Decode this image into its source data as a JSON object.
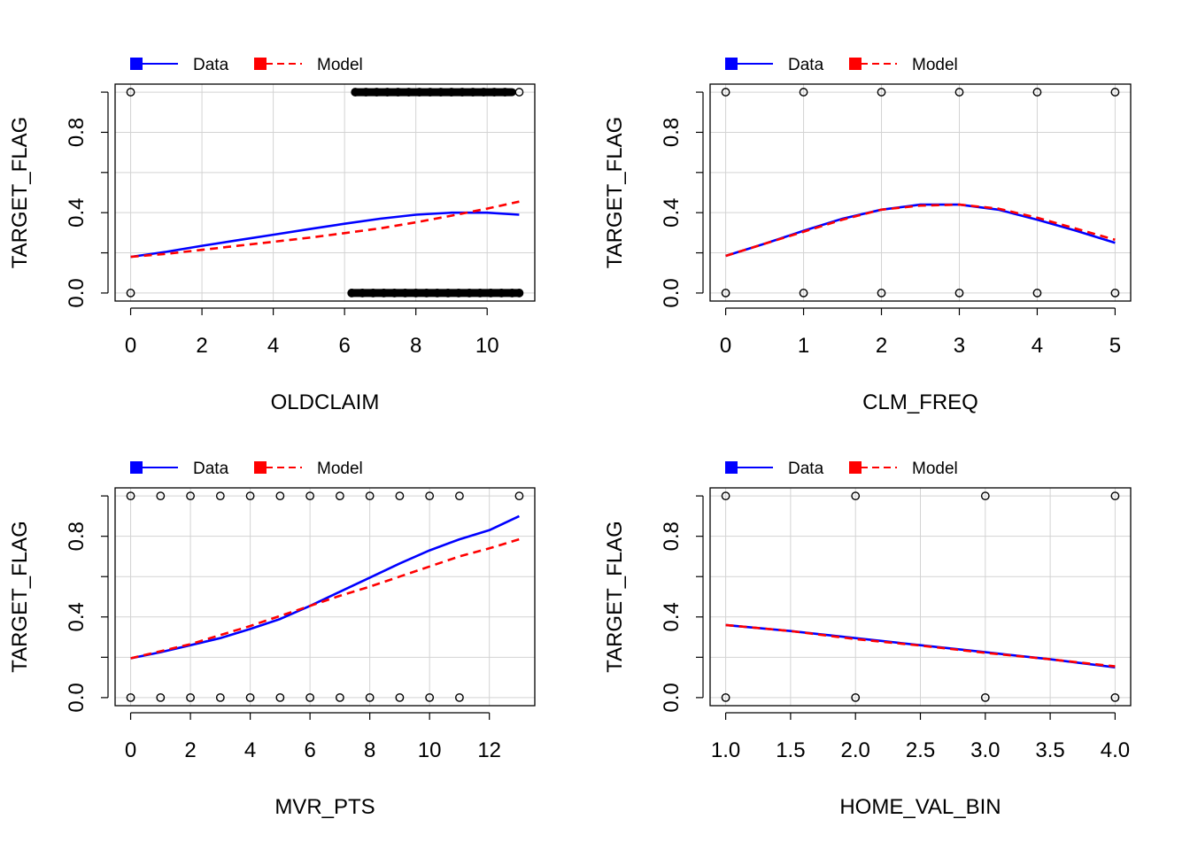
{
  "chart_data": [
    {
      "type": "line",
      "xlabel": "OLDCLAIM",
      "ylabel": "TARGET_FLAG",
      "xlim": [
        0,
        10.9
      ],
      "ylim": [
        0,
        1
      ],
      "xticks": [
        0,
        2,
        4,
        6,
        8,
        10
      ],
      "xtick_labels": [
        "0",
        "2",
        "4",
        "6",
        "8",
        "10"
      ],
      "yticks": [
        0.0,
        0.2,
        0.4,
        0.6,
        0.8,
        1.0
      ],
      "ytick_labels": [
        "0.0",
        "",
        "0.4",
        "",
        "0.8",
        ""
      ],
      "grid": true,
      "legend": {
        "placement": "top-left, outside",
        "entries": [
          "Data",
          "Model"
        ]
      },
      "series": [
        {
          "name": "Data",
          "color": "#0000ff",
          "style": "solid",
          "x": [
            0,
            1,
            2,
            3,
            4,
            5,
            6,
            7,
            8,
            9,
            10,
            10.9
          ],
          "y": [
            0.18,
            0.205,
            0.235,
            0.263,
            0.29,
            0.318,
            0.345,
            0.37,
            0.39,
            0.4,
            0.4,
            0.39
          ]
        },
        {
          "name": "Model",
          "color": "#ff0000",
          "style": "dashed",
          "x": [
            0,
            1,
            2,
            3,
            4,
            5,
            6,
            7,
            8,
            9,
            10,
            10.9
          ],
          "y": [
            0.18,
            0.195,
            0.215,
            0.235,
            0.255,
            0.275,
            0.298,
            0.322,
            0.352,
            0.385,
            0.42,
            0.455
          ]
        }
      ],
      "points": {
        "y1_x": [
          0,
          6.3,
          6.6,
          6.9,
          7.2,
          7.5,
          7.8,
          8.1,
          8.4,
          8.7,
          9.0,
          9.3,
          9.6,
          9.9,
          10.2,
          10.5,
          10.9
        ],
        "y0_x": [
          0,
          6.2,
          6.5,
          6.8,
          7.1,
          7.4,
          7.7,
          8.0,
          8.3,
          8.6,
          8.9,
          9.2,
          9.5,
          9.8,
          10.1,
          10.4,
          10.7,
          10.9
        ],
        "dense_ranges": [
          [
            6.3,
            10.7
          ],
          [
            6.2,
            10.9
          ]
        ]
      }
    },
    {
      "type": "line",
      "xlabel": "CLM_FREQ",
      "ylabel": "TARGET_FLAG",
      "xlim": [
        0,
        5
      ],
      "ylim": [
        0,
        1
      ],
      "xticks": [
        0,
        1,
        2,
        3,
        4,
        5
      ],
      "xtick_labels": [
        "0",
        "1",
        "2",
        "3",
        "4",
        "5"
      ],
      "yticks": [
        0.0,
        0.2,
        0.4,
        0.6,
        0.8,
        1.0
      ],
      "ytick_labels": [
        "0.0",
        "",
        "0.4",
        "",
        "0.8",
        ""
      ],
      "grid": true,
      "legend": {
        "placement": "top-left, outside",
        "entries": [
          "Data",
          "Model"
        ]
      },
      "series": [
        {
          "name": "Data",
          "color": "#0000ff",
          "style": "solid",
          "x": [
            0,
            0.5,
            1,
            1.5,
            2,
            2.5,
            3,
            3.5,
            4,
            4.5,
            5
          ],
          "y": [
            0.185,
            0.245,
            0.31,
            0.37,
            0.415,
            0.44,
            0.44,
            0.415,
            0.365,
            0.31,
            0.25
          ]
        },
        {
          "name": "Model",
          "color": "#ff0000",
          "style": "dashed",
          "x": [
            0,
            0.5,
            1,
            1.5,
            2,
            2.5,
            3,
            3.5,
            4,
            4.5,
            5
          ],
          "y": [
            0.185,
            0.245,
            0.305,
            0.365,
            0.415,
            0.435,
            0.44,
            0.42,
            0.375,
            0.32,
            0.265
          ]
        }
      ],
      "points": {
        "y1_x": [
          0,
          1,
          2,
          3,
          4,
          5
        ],
        "y0_x": [
          0,
          1,
          2,
          3,
          4,
          5
        ]
      }
    },
    {
      "type": "line",
      "xlabel": "MVR_PTS",
      "ylabel": "TARGET_FLAG",
      "xlim": [
        0,
        13
      ],
      "ylim": [
        0,
        1
      ],
      "xticks": [
        0,
        2,
        4,
        6,
        8,
        10,
        12
      ],
      "xtick_labels": [
        "0",
        "2",
        "4",
        "6",
        "8",
        "10",
        "12"
      ],
      "yticks": [
        0.0,
        0.2,
        0.4,
        0.6,
        0.8,
        1.0
      ],
      "ytick_labels": [
        "0.0",
        "",
        "0.4",
        "",
        "0.8",
        ""
      ],
      "grid": true,
      "legend": {
        "placement": "top-left, outside",
        "entries": [
          "Data",
          "Model"
        ]
      },
      "series": [
        {
          "name": "Data",
          "color": "#0000ff",
          "style": "solid",
          "x": [
            0,
            1,
            2,
            3,
            4,
            5,
            6,
            7,
            8,
            9,
            10,
            11,
            12,
            13
          ],
          "y": [
            0.195,
            0.225,
            0.26,
            0.295,
            0.34,
            0.39,
            0.455,
            0.525,
            0.595,
            0.665,
            0.73,
            0.785,
            0.83,
            0.9
          ]
        },
        {
          "name": "Model",
          "color": "#ff0000",
          "style": "dashed",
          "x": [
            0,
            1,
            2,
            3,
            4,
            5,
            6,
            7,
            8,
            9,
            10,
            11,
            12,
            13
          ],
          "y": [
            0.195,
            0.23,
            0.265,
            0.31,
            0.355,
            0.405,
            0.455,
            0.505,
            0.55,
            0.6,
            0.65,
            0.7,
            0.74,
            0.785
          ]
        }
      ],
      "points": {
        "y1_x": [
          0,
          1,
          2,
          3,
          4,
          5,
          6,
          7,
          8,
          9,
          10,
          11,
          13
        ],
        "y0_x": [
          0,
          1,
          2,
          3,
          4,
          5,
          6,
          7,
          8,
          9,
          10,
          11
        ]
      }
    },
    {
      "type": "line",
      "xlabel": "HOME_VAL_BIN",
      "ylabel": "TARGET_FLAG",
      "xlim": [
        1,
        4
      ],
      "ylim": [
        0,
        1
      ],
      "xticks": [
        1.0,
        1.5,
        2.0,
        2.5,
        3.0,
        3.5,
        4.0
      ],
      "xtick_labels": [
        "1.0",
        "1.5",
        "2.0",
        "2.5",
        "3.0",
        "3.5",
        "4.0"
      ],
      "yticks": [
        0.0,
        0.2,
        0.4,
        0.6,
        0.8,
        1.0
      ],
      "ytick_labels": [
        "0.0",
        "",
        "0.4",
        "",
        "0.8",
        ""
      ],
      "grid": true,
      "legend": {
        "placement": "top-left, outside",
        "entries": [
          "Data",
          "Model"
        ]
      },
      "series": [
        {
          "name": "Data",
          "color": "#0000ff",
          "style": "solid",
          "x": [
            1,
            1.5,
            2,
            2.5,
            3,
            3.5,
            4
          ],
          "y": [
            0.36,
            0.33,
            0.295,
            0.26,
            0.225,
            0.19,
            0.15
          ]
        },
        {
          "name": "Model",
          "color": "#ff0000",
          "style": "dashed",
          "x": [
            1,
            1.5,
            2,
            2.5,
            3,
            3.5,
            4
          ],
          "y": [
            0.36,
            0.33,
            0.29,
            0.258,
            0.222,
            0.19,
            0.155
          ]
        }
      ],
      "points": {
        "y1_x": [
          1,
          2,
          3,
          4
        ],
        "y0_x": [
          1,
          2,
          3,
          4
        ]
      }
    }
  ]
}
